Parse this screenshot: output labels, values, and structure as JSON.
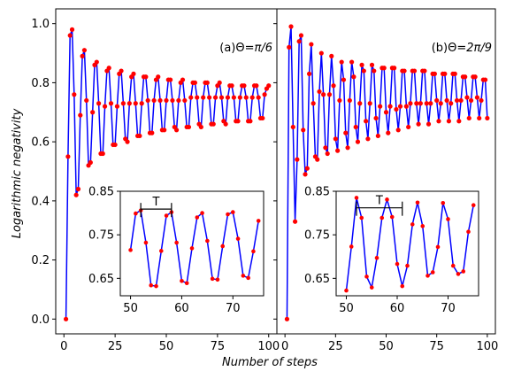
{
  "chart_data": {
    "type": "line",
    "xlabel": "Number of steps",
    "ylabel": "Logarithmic negativity",
    "colors": {
      "line": "#0000ff",
      "marker": "#ff0000",
      "axes": "#000000"
    },
    "panels": [
      {
        "label_prefix": "(a)Θ=",
        "label_value": "π/6",
        "xlim": [
          -4,
          104
        ],
        "ylim": [
          -0.05,
          1.05
        ],
        "xticks": [
          "0",
          "25",
          "50",
          "75",
          "100"
        ],
        "yticks": [
          "0.0",
          "0.2",
          "0.4",
          "0.6",
          "0.8",
          "1.0"
        ],
        "yticks_visible": true,
        "x": [
          1,
          2,
          3,
          4,
          5,
          6,
          7,
          8,
          9,
          10,
          11,
          12,
          13,
          14,
          15,
          16,
          17,
          18,
          19,
          20,
          21,
          22,
          23,
          24,
          25,
          26,
          27,
          28,
          29,
          30,
          31,
          32,
          33,
          34,
          35,
          36,
          37,
          38,
          39,
          40,
          41,
          42,
          43,
          44,
          45,
          46,
          47,
          48,
          49,
          50,
          51,
          52,
          53,
          54,
          55,
          56,
          57,
          58,
          59,
          60,
          61,
          62,
          63,
          64,
          65,
          66,
          67,
          68,
          69,
          70,
          71,
          72,
          73,
          74,
          75,
          76,
          77,
          78,
          79,
          80,
          81,
          82,
          83,
          84,
          85,
          86,
          87,
          88,
          89,
          90,
          91,
          92,
          93,
          94,
          95,
          96,
          97,
          98,
          99,
          100
        ],
        "y": [
          0.0,
          0.55,
          0.96,
          0.98,
          0.76,
          0.42,
          0.44,
          0.69,
          0.89,
          0.91,
          0.74,
          0.52,
          0.53,
          0.7,
          0.86,
          0.87,
          0.73,
          0.56,
          0.56,
          0.72,
          0.84,
          0.85,
          0.73,
          0.59,
          0.59,
          0.72,
          0.83,
          0.84,
          0.73,
          0.61,
          0.6,
          0.73,
          0.82,
          0.83,
          0.73,
          0.62,
          0.62,
          0.73,
          0.82,
          0.82,
          0.74,
          0.63,
          0.63,
          0.74,
          0.81,
          0.82,
          0.74,
          0.64,
          0.64,
          0.74,
          0.81,
          0.81,
          0.74,
          0.65,
          0.64,
          0.74,
          0.8,
          0.81,
          0.74,
          0.65,
          0.65,
          0.75,
          0.8,
          0.8,
          0.75,
          0.66,
          0.65,
          0.75,
          0.8,
          0.8,
          0.75,
          0.66,
          0.66,
          0.75,
          0.79,
          0.8,
          0.75,
          0.67,
          0.66,
          0.75,
          0.79,
          0.79,
          0.75,
          0.67,
          0.67,
          0.75,
          0.79,
          0.79,
          0.75,
          0.67,
          0.67,
          0.75,
          0.79,
          0.79,
          0.75,
          0.68,
          0.68,
          0.76,
          0.78,
          0.79
        ],
        "inset": {
          "xlim": [
            48,
            76
          ],
          "ylim": [
            0.61,
            0.85
          ],
          "xticks": [
            "50",
            "60",
            "70"
          ],
          "yticks": [
            "0.65",
            "0.75",
            "0.85"
          ],
          "annotation": "T",
          "period_span": [
            52,
            58
          ],
          "period_y": 0.809,
          "x": [
            50,
            51,
            52,
            53,
            54,
            55,
            56,
            57,
            58,
            59,
            60,
            61,
            62,
            63,
            64,
            65,
            66,
            67,
            68,
            69,
            70,
            71,
            72,
            73,
            74,
            75
          ],
          "y": [
            0.715,
            0.799,
            0.806,
            0.732,
            0.634,
            0.632,
            0.713,
            0.794,
            0.802,
            0.732,
            0.644,
            0.639,
            0.719,
            0.79,
            0.8,
            0.736,
            0.649,
            0.647,
            0.724,
            0.797,
            0.802,
            0.741,
            0.656,
            0.651,
            0.712,
            0.782
          ]
        }
      },
      {
        "label_prefix": "(b)Θ=",
        "label_value": "2π/9",
        "xlim": [
          -4,
          104
        ],
        "ylim": [
          -0.05,
          1.05
        ],
        "xticks": [
          "0",
          "25",
          "50",
          "75",
          "100"
        ],
        "yticks": [
          "0.0",
          "0.2",
          "0.4",
          "0.6",
          "0.8",
          "1.0"
        ],
        "yticks_visible": false,
        "x": [
          1,
          2,
          3,
          4,
          5,
          6,
          7,
          8,
          9,
          10,
          11,
          12,
          13,
          14,
          15,
          16,
          17,
          18,
          19,
          20,
          21,
          22,
          23,
          24,
          25,
          26,
          27,
          28,
          29,
          30,
          31,
          32,
          33,
          34,
          35,
          36,
          37,
          38,
          39,
          40,
          41,
          42,
          43,
          44,
          45,
          46,
          47,
          48,
          49,
          50,
          51,
          52,
          53,
          54,
          55,
          56,
          57,
          58,
          59,
          60,
          61,
          62,
          63,
          64,
          65,
          66,
          67,
          68,
          69,
          70,
          71,
          72,
          73,
          74,
          75,
          76,
          77,
          78,
          79,
          80,
          81,
          82,
          83,
          84,
          85,
          86,
          87,
          88,
          89,
          90,
          91,
          92,
          93,
          94,
          95,
          96,
          97,
          98,
          99,
          100
        ],
        "y": [
          0.0,
          0.92,
          0.99,
          0.65,
          0.33,
          0.54,
          0.94,
          0.96,
          0.64,
          0.49,
          0.51,
          0.83,
          0.93,
          0.73,
          0.55,
          0.54,
          0.77,
          0.9,
          0.76,
          0.58,
          0.56,
          0.76,
          0.89,
          0.79,
          0.61,
          0.57,
          0.74,
          0.87,
          0.81,
          0.63,
          0.58,
          0.74,
          0.87,
          0.82,
          0.65,
          0.6,
          0.73,
          0.86,
          0.84,
          0.67,
          0.61,
          0.73,
          0.86,
          0.84,
          0.68,
          0.62,
          0.72,
          0.85,
          0.85,
          0.7,
          0.63,
          0.72,
          0.85,
          0.85,
          0.71,
          0.64,
          0.72,
          0.84,
          0.84,
          0.72,
          0.65,
          0.73,
          0.84,
          0.84,
          0.73,
          0.66,
          0.73,
          0.84,
          0.84,
          0.73,
          0.66,
          0.73,
          0.83,
          0.83,
          0.74,
          0.67,
          0.73,
          0.83,
          0.83,
          0.74,
          0.67,
          0.73,
          0.83,
          0.83,
          0.74,
          0.67,
          0.74,
          0.82,
          0.82,
          0.75,
          0.68,
          0.74,
          0.82,
          0.82,
          0.75,
          0.68,
          0.74,
          0.81,
          0.81,
          0.68
        ],
        "inset": {
          "xlim": [
            48,
            76
          ],
          "ylim": [
            0.61,
            0.85
          ],
          "xticks": [
            "50",
            "60",
            "70"
          ],
          "yticks": [
            "0.65",
            "0.75",
            "0.85"
          ],
          "annotation": "T",
          "period_span": [
            52,
            61
          ],
          "period_y": 0.812,
          "x": [
            50,
            51,
            52,
            53,
            54,
            55,
            56,
            57,
            58,
            59,
            60,
            61,
            62,
            63,
            64,
            65,
            66,
            67,
            68,
            69,
            70,
            71,
            72,
            73,
            74,
            75
          ],
          "y": [
            0.622,
            0.723,
            0.835,
            0.789,
            0.654,
            0.629,
            0.697,
            0.789,
            0.831,
            0.791,
            0.683,
            0.632,
            0.679,
            0.774,
            0.824,
            0.77,
            0.656,
            0.664,
            0.722,
            0.823,
            0.786,
            0.679,
            0.66,
            0.666,
            0.757,
            0.818
          ]
        }
      }
    ]
  }
}
